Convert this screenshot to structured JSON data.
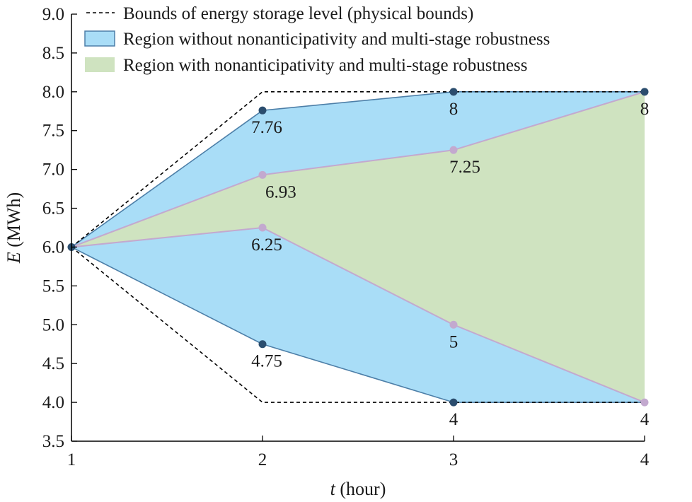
{
  "chart_data": {
    "type": "area",
    "xlabel_var": "t",
    "xlabel_unit": " (hour)",
    "ylabel_var": "E",
    "ylabel_unit": " (MWh)",
    "x": [
      1,
      2,
      3,
      4
    ],
    "xticks": [
      "1",
      "2",
      "3",
      "4"
    ],
    "ylim": [
      3.5,
      9.0
    ],
    "yticks": [
      "3.5",
      "4.0",
      "4.5",
      "5.0",
      "5.5",
      "6.0",
      "6.5",
      "7.0",
      "7.5",
      "8.0",
      "8.5",
      "9.0"
    ],
    "colors": {
      "outer_fill": "#a9ddf7",
      "outer_line": "#4d7fa8",
      "outer_marker": "#2b4d6e",
      "inner_fill": "#cfe3c0",
      "inner_line": "#c3a9cf",
      "inner_marker": "#c3a9cf",
      "bounds_line": "#000000"
    },
    "series": [
      {
        "name": "Bounds of energy storage level (physical bounds)",
        "kind": "bounds",
        "upper": [
          6,
          8,
          8,
          8
        ],
        "lower": [
          6,
          4,
          4,
          4
        ]
      },
      {
        "name": "Region without nonanticipativity and multi-stage robustness",
        "kind": "outer_region",
        "upper": [
          6,
          7.76,
          8,
          8
        ],
        "lower": [
          6,
          4.75,
          4,
          4
        ]
      },
      {
        "name": "Region with nonanticipativity and multi-stage robustness",
        "kind": "inner_region",
        "upper": [
          6,
          6.93,
          7.25,
          8
        ],
        "lower": [
          6,
          6.25,
          5,
          4
        ]
      }
    ],
    "annotations": [
      {
        "text": "7.76",
        "x": 2,
        "y": 7.76
      },
      {
        "text": "6.93",
        "x": 2,
        "y": 6.93
      },
      {
        "text": "6.25",
        "x": 2,
        "y": 6.25
      },
      {
        "text": "4.75",
        "x": 2,
        "y": 4.75
      },
      {
        "text": "8",
        "x": 3,
        "y": 8
      },
      {
        "text": "7.25",
        "x": 3,
        "y": 7.25
      },
      {
        "text": "5",
        "x": 3,
        "y": 5
      },
      {
        "text": "4",
        "x": 3,
        "y": 4
      },
      {
        "text": "8",
        "x": 4,
        "y": 8
      },
      {
        "text": "4",
        "x": 4,
        "y": 4
      }
    ],
    "legend_position": "top-left",
    "grid": false
  }
}
